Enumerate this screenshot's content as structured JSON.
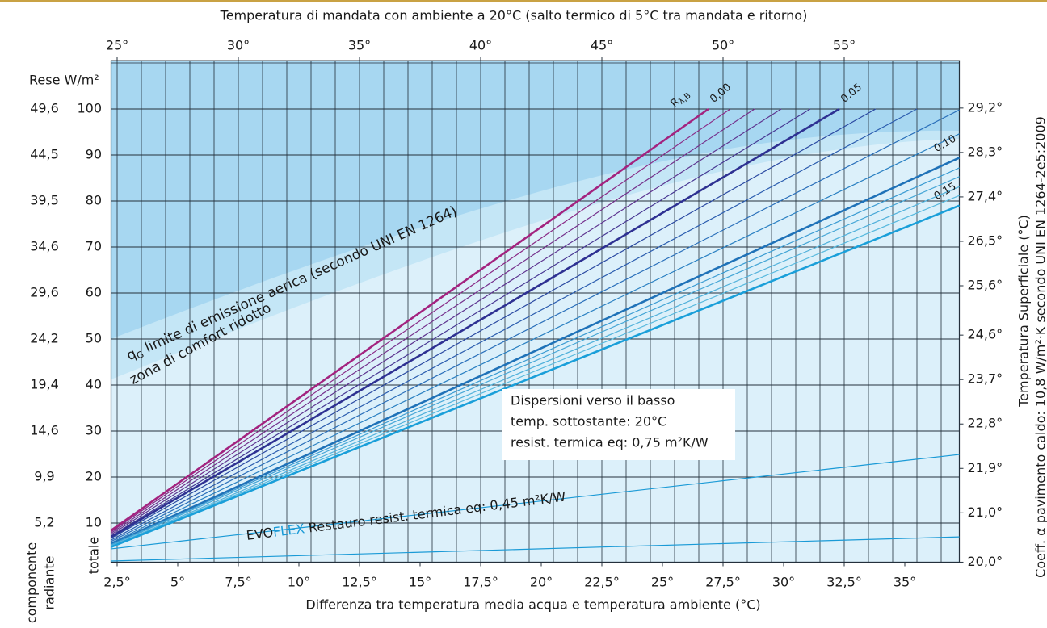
{
  "chart_data": {
    "type": "line",
    "title": "Temperatura di mandata con ambiente a 20°C   (salto termico di 5°C tra mandata e ritorno)",
    "x_label": "Differenza tra temperatura media acqua e temperatura ambiente (°C)",
    "y_label": "Rese W/m²",
    "y2_label": "Temperatura Superficiale (°C)",
    "note": "Coeff. α pavimento caldo: 10,8 W/m²·K secondo UNI EN 1264-2e5:2009",
    "radiant_axis_label": [
      "componente",
      "radiante"
    ],
    "total_axis_label": "totale",
    "grid": true,
    "xlim": [
      2.25,
      37.25
    ],
    "xticks": [
      {
        "value": 2.5,
        "label": "2,5°"
      },
      {
        "value": 5,
        "label": "5°"
      },
      {
        "value": 7.5,
        "label": "7,5°"
      },
      {
        "value": 10,
        "label": "10°"
      },
      {
        "value": 12.5,
        "label": "12,5°"
      },
      {
        "value": 15,
        "label": "15°"
      },
      {
        "value": 17.5,
        "label": "17,5°"
      },
      {
        "value": 20,
        "label": "20°"
      },
      {
        "value": 22.5,
        "label": "22,5°"
      },
      {
        "value": 25,
        "label": "25°"
      },
      {
        "value": 27.5,
        "label": "27,5°"
      },
      {
        "value": 30,
        "label": "30°"
      },
      {
        "value": 32.5,
        "label": "32,5°"
      },
      {
        "value": 35,
        "label": "35°"
      }
    ],
    "x2lim": [
      24.75,
      59.75
    ],
    "x2ticks": [
      {
        "value": 25,
        "label": "25°"
      },
      {
        "value": 30,
        "label": "30°"
      },
      {
        "value": 35,
        "label": "35°"
      },
      {
        "value": 40,
        "label": "40°"
      },
      {
        "value": 45,
        "label": "45°"
      },
      {
        "value": 50,
        "label": "50°"
      },
      {
        "value": 55,
        "label": "55°"
      }
    ],
    "ylim": [
      1.5,
      110.5
    ],
    "yticks": [
      10,
      20,
      30,
      40,
      50,
      60,
      70,
      80,
      90,
      100
    ],
    "radiant_labels": [
      "5,2",
      "9,9",
      "14,6",
      "19,4",
      "24,2",
      "29,6",
      "34,6",
      "39,5",
      "44,5",
      "49,6"
    ],
    "y2lim": [
      20.0,
      30.16
    ],
    "y2ticks": [
      {
        "value": 20.0,
        "label": "20,0°"
      },
      {
        "value": 21.0,
        "label": "21,0°"
      },
      {
        "value": 21.9,
        "label": "21,9°"
      },
      {
        "value": 22.8,
        "label": "22,8°"
      },
      {
        "value": 23.7,
        "label": "23,7°"
      },
      {
        "value": 24.6,
        "label": "24,6°"
      },
      {
        "value": 25.6,
        "label": "25,6°"
      },
      {
        "value": 26.5,
        "label": "26,5°"
      },
      {
        "value": 27.4,
        "label": "27,4°"
      },
      {
        "value": 28.3,
        "label": "28,3°"
      },
      {
        "value": 29.2,
        "label": "29,2°"
      }
    ],
    "series_symbol": {
      "symbol": "R",
      "subscript": "λ,B"
    },
    "series": [
      {
        "name": "0,00",
        "color": "#a3237f",
        "x": [
          2.25,
          26.9
        ],
        "values": [
          8.4,
          100
        ]
      },
      {
        "color": "#8a2a86",
        "x": [
          2.25,
          27.8
        ],
        "values": [
          8.1,
          100
        ]
      },
      {
        "color": "#75308c",
        "x": [
          2.25,
          28.8
        ],
        "values": [
          7.8,
          100
        ]
      },
      {
        "color": "#5e3490",
        "x": [
          2.25,
          29.9
        ],
        "values": [
          7.5,
          100
        ]
      },
      {
        "color": "#473793",
        "x": [
          2.25,
          31.1
        ],
        "values": [
          7.2,
          100
        ]
      },
      {
        "name": "0,05",
        "color": "#2e3192",
        "x": [
          2.25,
          32.3
        ],
        "values": [
          7.0,
          100
        ]
      },
      {
        "color": "#2b4aa2",
        "x": [
          2.25,
          33.8
        ],
        "values": [
          6.7,
          100
        ]
      },
      {
        "color": "#2b5daf",
        "x": [
          2.25,
          35.5
        ],
        "values": [
          6.3,
          100
        ]
      },
      {
        "color": "#2a6fba",
        "x": [
          2.25,
          37.25
        ],
        "values": [
          6.0,
          99.8
        ]
      },
      {
        "color": "#2a80c2",
        "x": [
          2.25,
          37.25
        ],
        "values": [
          5.7,
          94.6
        ]
      },
      {
        "name": "0,10",
        "color": "#1f72b8",
        "x": [
          2.25,
          37.25
        ],
        "values": [
          5.4,
          89.4
        ]
      },
      {
        "color": "#3a9bd2",
        "x": [
          2.25,
          37.25
        ],
        "values": [
          5.3,
          87.2
        ]
      },
      {
        "color": "#45a6d6",
        "x": [
          2.25,
          37.25
        ],
        "values": [
          5.2,
          85.3
        ]
      },
      {
        "color": "#4fb0da",
        "x": [
          2.25,
          37.25
        ],
        "values": [
          5.0,
          83.1
        ]
      },
      {
        "color": "#58b9de",
        "x": [
          2.25,
          37.25
        ],
        "values": [
          4.9,
          81.2
        ]
      },
      {
        "name": "0,15",
        "color": "#1a9fd9",
        "x": [
          2.25,
          37.25
        ],
        "values": [
          4.8,
          79.0
        ]
      },
      {
        "color": "#1a9ad6",
        "x": [
          2.25,
          37.25
        ],
        "values": [
          4.4,
          24.9
        ]
      },
      {
        "color": "#1a9ad6",
        "x": [
          2.25,
          37.25
        ],
        "values": [
          1.75,
          7.0
        ]
      }
    ],
    "annotations": {
      "limit": [
        "q",
        "G",
        " limite di emissione aerica (secondo UNI EN 1264)"
      ],
      "comfort": "zona di comfort ridotto",
      "box": [
        "Dispersioni verso il basso",
        "temp. sottostante: 20°C",
        "resist. termica eq: 0,75 m²K/W"
      ],
      "product": [
        "EVO",
        "FLEX",
        " Restauro resist. termica eq: 0,45 m²K/W"
      ]
    }
  }
}
